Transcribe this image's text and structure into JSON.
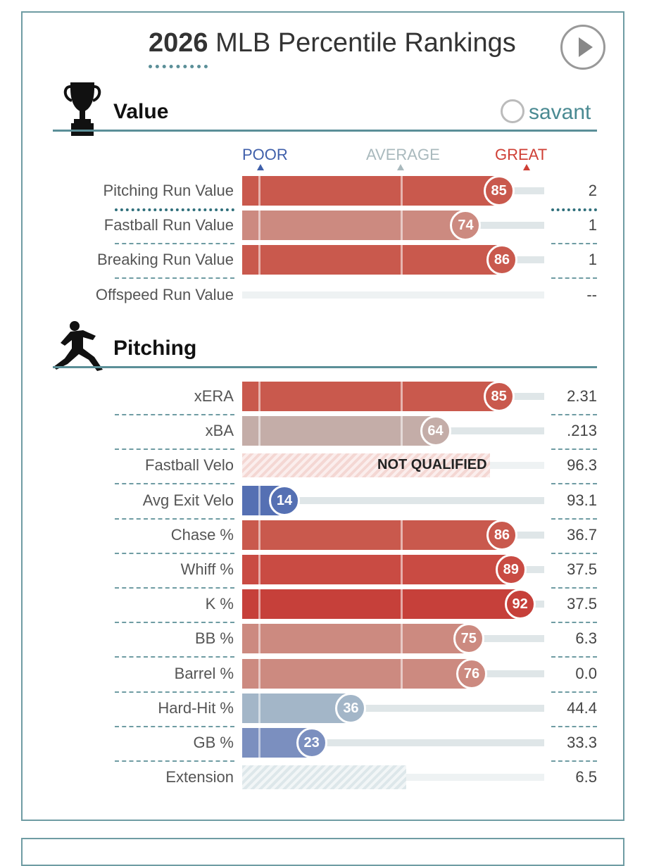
{
  "header": {
    "title_year": "2026",
    "title_rest": "MLB Percentile Rankings",
    "play_icon": "play-icon"
  },
  "colors": {
    "accent": "#5b8f98",
    "great": "#cf3f35",
    "poor": "#4c68ad",
    "average": "#a9b9bd"
  },
  "sections": {
    "value": {
      "title": "Value",
      "icon": "trophy-icon"
    },
    "pitching": {
      "title": "Pitching",
      "icon": "pitcher-icon"
    }
  },
  "brand": {
    "label": "savant",
    "icon": "baseball-icon"
  },
  "legend": {
    "poor": "POOR",
    "average": "AVERAGE",
    "great": "GREAT"
  },
  "value_rows": [
    {
      "label": "Pitching Run Value",
      "percentile": 85,
      "percentile_text": "85",
      "value": "2",
      "color": "#c9594d"
    },
    {
      "label": "Fastball Run Value",
      "percentile": 74,
      "percentile_text": "74",
      "value": "1",
      "color": "#cc8a80"
    },
    {
      "label": "Breaking Run Value",
      "percentile": 86,
      "percentile_text": "86",
      "value": "1",
      "color": "#c9594d"
    },
    {
      "label": "Offspeed Run Value",
      "percentile": null,
      "percentile_text": "",
      "value": "--",
      "color": ""
    }
  ],
  "pitching_rows": [
    {
      "label": "xERA",
      "percentile": 85,
      "percentile_text": "85",
      "value": "2.31",
      "color": "#c9594d"
    },
    {
      "label": "xBA",
      "percentile": 64,
      "percentile_text": "64",
      "value": ".213",
      "color": "#c4ada8"
    },
    {
      "label": "Fastball Velo",
      "percentile": null,
      "percentile_text": "",
      "value": "96.3",
      "color": "",
      "status": "NOT QUALIFIED"
    },
    {
      "label": "Avg Exit Velo",
      "percentile": 14,
      "percentile_text": "14",
      "value": "93.1",
      "color": "#5570b3"
    },
    {
      "label": "Chase %",
      "percentile": 86,
      "percentile_text": "86",
      "value": "36.7",
      "color": "#c9594d"
    },
    {
      "label": "Whiff %",
      "percentile": 89,
      "percentile_text": "89",
      "value": "37.5",
      "color": "#c94b43"
    },
    {
      "label": "K %",
      "percentile": 92,
      "percentile_text": "92",
      "value": "37.5",
      "color": "#c6403a"
    },
    {
      "label": "BB %",
      "percentile": 75,
      "percentile_text": "75",
      "value": "6.3",
      "color": "#cc8a80"
    },
    {
      "label": "Barrel %",
      "percentile": 76,
      "percentile_text": "76",
      "value": "0.0",
      "color": "#cc8a80"
    },
    {
      "label": "Hard-Hit %",
      "percentile": 36,
      "percentile_text": "36",
      "value": "44.4",
      "color": "#a3b6c8"
    },
    {
      "label": "GB %",
      "percentile": 23,
      "percentile_text": "23",
      "value": "33.3",
      "color": "#7b8fbf"
    },
    {
      "label": "Extension",
      "percentile": null,
      "percentile_text": "",
      "value": "6.5",
      "color": ""
    }
  ]
}
